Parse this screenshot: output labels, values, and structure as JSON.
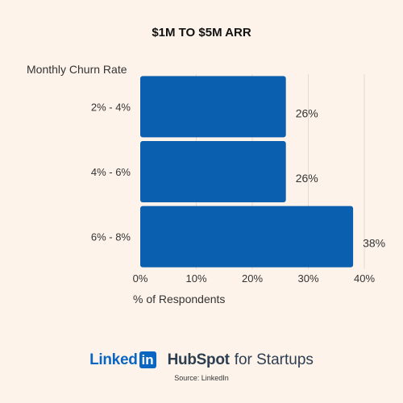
{
  "chart_data": {
    "type": "bar",
    "orientation": "horizontal",
    "title": "$1M TO $5M ARR",
    "ylabel": "Monthly Churn Rate",
    "xlabel": "% of Respondents",
    "categories": [
      "2% - 4%",
      "4% - 6%",
      "6% - 8%"
    ],
    "values": [
      26,
      26,
      38
    ],
    "data_labels": [
      "26%",
      "26%",
      "38%"
    ],
    "xlim": [
      0,
      40
    ],
    "x_ticks": [
      0,
      10,
      20,
      30,
      40
    ],
    "x_tick_labels": [
      "0%",
      "10%",
      "20%",
      "30%",
      "40%"
    ],
    "grid": "vertical",
    "bar_color": "#0a5fae"
  },
  "footer": {
    "linkedin_word": "Linked",
    "linkedin_box": "in",
    "hubspot_word": "HubSpot",
    "hubspot_rest": "for Startups",
    "source": "Source: LinkedIn"
  }
}
